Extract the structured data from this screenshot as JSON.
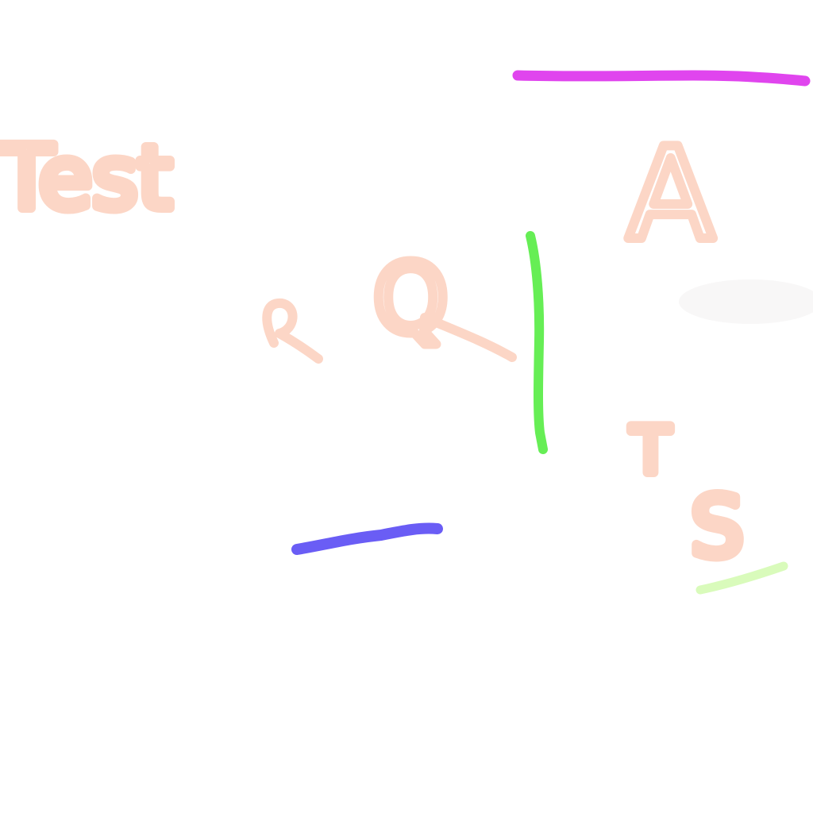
{
  "canvas": {
    "labels": [
      "Test",
      "A",
      "Q",
      "T",
      "S"
    ]
  }
}
